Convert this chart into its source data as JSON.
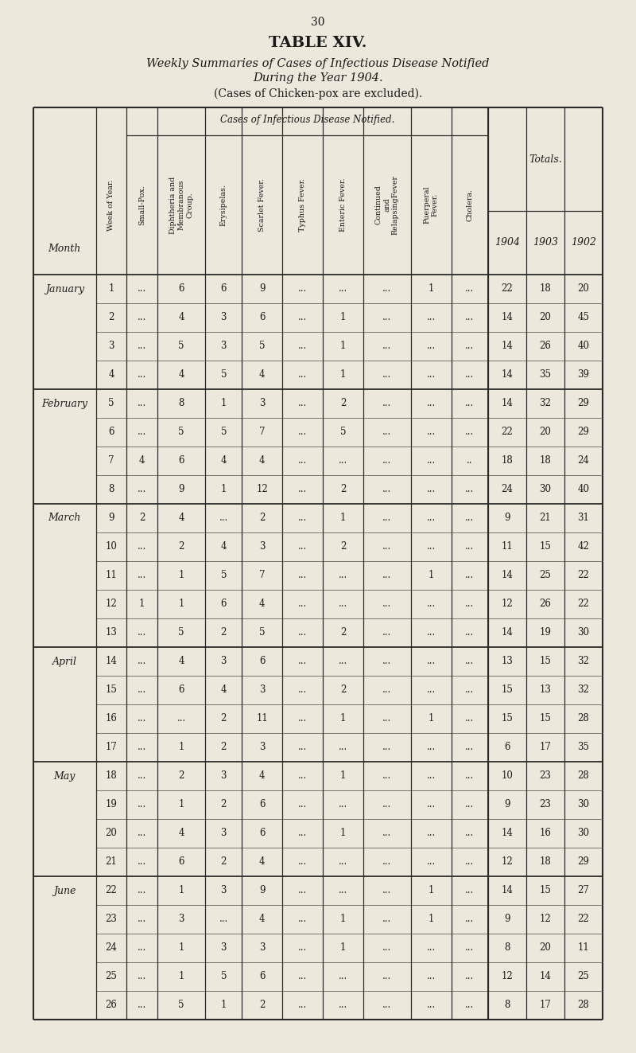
{
  "page_number": "30",
  "title_line1": "TABLE XIV.",
  "title_line2": "Weekly Summaries of Cases of Infectious Disease Notified",
  "title_line3": "During the Year 1904.",
  "title_line4": "(Cases of Chicken-pox are excluded).",
  "col_headers_group": "Cases of Infectious Disease Notified.",
  "col_headers_totals": "Totals.",
  "bg_color": "#ede8dc",
  "rotated_headers": [
    "Week of Year.",
    "Small-Pox.",
    "Diphtheria and\nMembranous\nCroup.",
    "Erysipelas.",
    "Scarlet Fever.",
    "Typhus Fever.",
    "Enteric Fever.",
    "Continued\nand\nRelapsingFever",
    "Puerperal\nFever.",
    "Cholera."
  ],
  "year_headers": [
    "1904",
    "1903",
    "1902"
  ],
  "rows": [
    [
      "January",
      "1",
      "...",
      "6",
      "6",
      "9",
      "...",
      "...",
      "...",
      "1",
      "...",
      "22",
      "18",
      "20"
    ],
    [
      "",
      "2",
      "...",
      "4",
      "3",
      "6",
      "...",
      "1",
      "...",
      "...",
      "...",
      "14",
      "20",
      "45"
    ],
    [
      "",
      "3",
      "...",
      "5",
      "3",
      "5",
      "...",
      "1",
      "...",
      "...",
      "...",
      "14",
      "26",
      "40"
    ],
    [
      "",
      "4",
      "...",
      "4",
      "5",
      "4",
      "...",
      "1",
      "...",
      "...",
      "...",
      "14",
      "35",
      "39"
    ],
    [
      "February",
      "5",
      "...",
      "8",
      "1",
      "3",
      "...",
      "2",
      "...",
      "...",
      "...",
      "14",
      "32",
      "29"
    ],
    [
      "",
      "6",
      "...",
      "5",
      "5",
      "7",
      "...",
      "5",
      "...",
      "...",
      "...",
      "22",
      "20",
      "29"
    ],
    [
      "",
      "7",
      "4",
      "6",
      "4",
      "4",
      "...",
      "...",
      "...",
      "...",
      "..",
      "18",
      "18",
      "24"
    ],
    [
      "",
      "8",
      "...",
      "9",
      "1",
      "12",
      "...",
      "2",
      "...",
      "...",
      "...",
      "24",
      "30",
      "40"
    ],
    [
      "March",
      "9",
      "2",
      "4",
      "...",
      "2",
      "...",
      "1",
      "...",
      "...",
      "...",
      "9",
      "21",
      "31"
    ],
    [
      "",
      "10",
      "...",
      "2",
      "4",
      "3",
      "...",
      "2",
      "...",
      "...",
      "...",
      "11",
      "15",
      "42"
    ],
    [
      "",
      "11",
      "...",
      "1",
      "5",
      "7",
      "...",
      "...",
      "...",
      "1",
      "...",
      "14",
      "25",
      "22"
    ],
    [
      "",
      "12",
      "1",
      "1",
      "6",
      "4",
      "...",
      "...",
      "...",
      "...",
      "...",
      "12",
      "26",
      "22"
    ],
    [
      "",
      "13",
      "...",
      "5",
      "2",
      "5",
      "...",
      "2",
      "...",
      "...",
      "...",
      "14",
      "19",
      "30"
    ],
    [
      "April",
      "14",
      "...",
      "4",
      "3",
      "6",
      "...",
      "...",
      "...",
      "...",
      "...",
      "13",
      "15",
      "32"
    ],
    [
      "",
      "15",
      "...",
      "6",
      "4",
      "3",
      "...",
      "2",
      "...",
      "...",
      "...",
      "15",
      "13",
      "32"
    ],
    [
      "",
      "16",
      "...",
      "...",
      "2",
      "11",
      "...",
      "1",
      "...",
      "1",
      "...",
      "15",
      "15",
      "28"
    ],
    [
      "",
      "17",
      "...",
      "1",
      "2",
      "3",
      "...",
      "...",
      "...",
      "...",
      "...",
      "6",
      "17",
      "35"
    ],
    [
      "May",
      "18",
      "...",
      "2",
      "3",
      "4",
      "...",
      "1",
      "...",
      "...",
      "...",
      "10",
      "23",
      "28"
    ],
    [
      "",
      "19",
      "...",
      "1",
      "2",
      "6",
      "...",
      "...",
      "...",
      "...",
      "...",
      "9",
      "23",
      "30"
    ],
    [
      "",
      "20",
      "...",
      "4",
      "3",
      "6",
      "...",
      "1",
      "...",
      "...",
      "...",
      "14",
      "16",
      "30"
    ],
    [
      "",
      "21",
      "...",
      "6",
      "2",
      "4",
      "...",
      "...",
      "...",
      "...",
      "...",
      "12",
      "18",
      "29"
    ],
    [
      "June",
      "22",
      "...",
      "1",
      "3",
      "9",
      "...",
      "...",
      "...",
      "1",
      "...",
      "14",
      "15",
      "27"
    ],
    [
      "",
      "23",
      "...",
      "3",
      "...",
      "4",
      "...",
      "1",
      "...",
      "1",
      "...",
      "9",
      "12",
      "22"
    ],
    [
      "",
      "24",
      "...",
      "1",
      "3",
      "3",
      "...",
      "1",
      "...",
      "...",
      "...",
      "8",
      "20",
      "11"
    ],
    [
      "",
      "25",
      "...",
      "1",
      "5",
      "6",
      "...",
      "...",
      "...",
      "...",
      "...",
      "12",
      "14",
      "25"
    ],
    [
      "",
      "26",
      "...",
      "5",
      "1",
      "2",
      "...",
      "...",
      "...",
      "...",
      "...",
      "8",
      "17",
      "28"
    ]
  ],
  "month_first_rows": [
    0,
    4,
    8,
    13,
    17,
    21
  ]
}
